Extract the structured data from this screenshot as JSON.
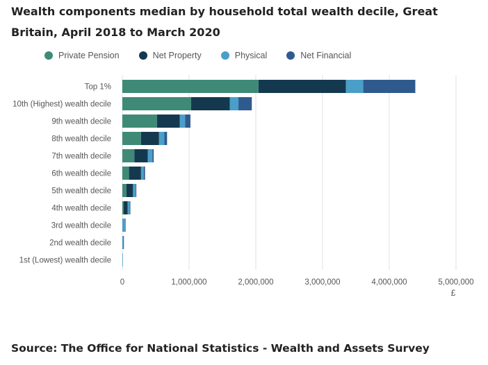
{
  "chart_data": {
    "type": "bar",
    "orientation": "horizontal",
    "stacked": true,
    "title": "Wealth components median by household total wealth decile, Great Britain, April 2018 to March 2020",
    "xlabel": "£",
    "ylabel": "",
    "xlim": [
      0,
      5000000
    ],
    "x_ticks": [
      0,
      1000000,
      2000000,
      3000000,
      4000000,
      5000000
    ],
    "x_tick_labels": [
      "0",
      "1,000,000",
      "2,000,000",
      "3,000,000",
      "4,000,000",
      "5,000,000"
    ],
    "grid": true,
    "legend_position": "top-left",
    "categories": [
      "Top 1%",
      "10th (Highest) wealth decile",
      "9th wealth decile",
      "8th wealth decile",
      "7th wealth decile",
      "6th wealth decile",
      "5th wealth decile",
      "4th wealth decile",
      "3rd wealth decile",
      "2nd wealth decile",
      "1st (Lowest) wealth decile"
    ],
    "series": [
      {
        "name": "Private Pension",
        "color": "#3e8a77",
        "values": [
          2040000,
          1030000,
          520000,
          280000,
          180000,
          100000,
          60000,
          20000,
          0,
          0,
          0
        ]
      },
      {
        "name": "Net Property",
        "color": "#14394f",
        "values": [
          1310000,
          580000,
          340000,
          270000,
          200000,
          180000,
          100000,
          60000,
          0,
          0,
          0
        ]
      },
      {
        "name": "Physical",
        "color": "#4a9fc8",
        "values": [
          260000,
          130000,
          80000,
          80000,
          70000,
          40000,
          40000,
          30000,
          40000,
          15000,
          5000
        ]
      },
      {
        "name": "Net Financial",
        "color": "#2f5a8e",
        "values": [
          780000,
          200000,
          80000,
          40000,
          20000,
          20000,
          10000,
          10000,
          5000,
          2000,
          0
        ]
      }
    ]
  },
  "source": "Source: The Office for National Statistics - Wealth and Assets Survey"
}
